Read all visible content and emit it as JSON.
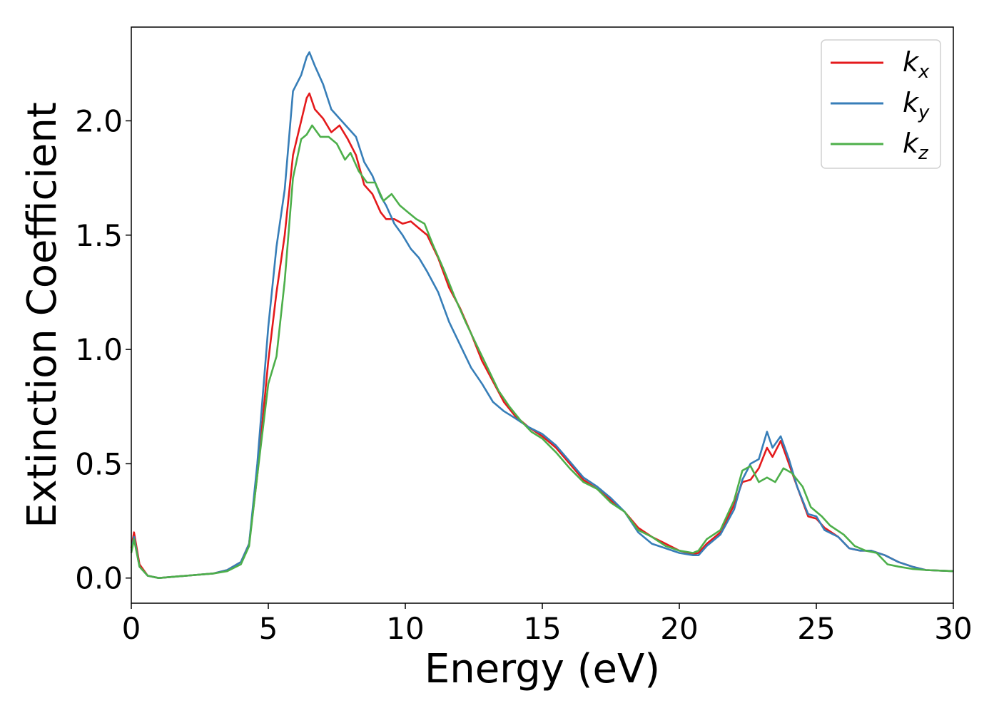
{
  "chart_data": {
    "type": "line",
    "title": "",
    "xlabel": "Energy (eV)",
    "ylabel": "Extinction Coefficient",
    "xlim": [
      0,
      30
    ],
    "ylim": [
      -0.11,
      2.41
    ],
    "xticks": [
      0,
      5,
      10,
      15,
      20,
      25,
      30
    ],
    "xtick_labels": [
      "0",
      "5",
      "10",
      "15",
      "20",
      "25",
      "30"
    ],
    "yticks": [
      0.0,
      0.5,
      1.0,
      1.5,
      2.0
    ],
    "ytick_labels": [
      "0.0",
      "0.5",
      "1.0",
      "1.5",
      "2.0"
    ],
    "grid": false,
    "legend_position": "top-right",
    "series": [
      {
        "name": "k_x",
        "label_base": "k",
        "label_sub": "x",
        "color": "#e41a1c",
        "points": [
          [
            0,
            0.13
          ],
          [
            0.1,
            0.2
          ],
          [
            0.3,
            0.06
          ],
          [
            0.6,
            0.01
          ],
          [
            1.0,
            0.0
          ],
          [
            2.0,
            0.01
          ],
          [
            3.0,
            0.02
          ],
          [
            3.5,
            0.035
          ],
          [
            4.0,
            0.07
          ],
          [
            4.3,
            0.15
          ],
          [
            4.6,
            0.45
          ],
          [
            5.0,
            0.95
          ],
          [
            5.3,
            1.25
          ],
          [
            5.6,
            1.5
          ],
          [
            5.9,
            1.85
          ],
          [
            6.2,
            2.0
          ],
          [
            6.4,
            2.1
          ],
          [
            6.5,
            2.12
          ],
          [
            6.7,
            2.05
          ],
          [
            7.0,
            2.01
          ],
          [
            7.3,
            1.95
          ],
          [
            7.6,
            1.98
          ],
          [
            7.9,
            1.92
          ],
          [
            8.2,
            1.85
          ],
          [
            8.5,
            1.72
          ],
          [
            8.8,
            1.68
          ],
          [
            9.1,
            1.6
          ],
          [
            9.3,
            1.57
          ],
          [
            9.6,
            1.57
          ],
          [
            9.9,
            1.55
          ],
          [
            10.2,
            1.56
          ],
          [
            10.5,
            1.53
          ],
          [
            10.8,
            1.5
          ],
          [
            11.2,
            1.4
          ],
          [
            11.6,
            1.27
          ],
          [
            12.0,
            1.18
          ],
          [
            12.4,
            1.07
          ],
          [
            12.8,
            0.95
          ],
          [
            13.2,
            0.86
          ],
          [
            13.6,
            0.77
          ],
          [
            14.0,
            0.71
          ],
          [
            14.5,
            0.66
          ],
          [
            15.0,
            0.62
          ],
          [
            15.5,
            0.57
          ],
          [
            16.0,
            0.5
          ],
          [
            16.5,
            0.43
          ],
          [
            17.0,
            0.39
          ],
          [
            17.5,
            0.34
          ],
          [
            18.0,
            0.29
          ],
          [
            18.5,
            0.22
          ],
          [
            19.0,
            0.18
          ],
          [
            19.5,
            0.15
          ],
          [
            20.0,
            0.12
          ],
          [
            20.5,
            0.105
          ],
          [
            20.7,
            0.11
          ],
          [
            21.0,
            0.15
          ],
          [
            21.5,
            0.2
          ],
          [
            22.0,
            0.32
          ],
          [
            22.3,
            0.42
          ],
          [
            22.6,
            0.43
          ],
          [
            22.9,
            0.48
          ],
          [
            23.2,
            0.57
          ],
          [
            23.4,
            0.53
          ],
          [
            23.7,
            0.6
          ],
          [
            24.0,
            0.5
          ],
          [
            24.3,
            0.4
          ],
          [
            24.7,
            0.27
          ],
          [
            25.0,
            0.26
          ],
          [
            25.3,
            0.22
          ],
          [
            25.8,
            0.18
          ],
          [
            26.2,
            0.13
          ],
          [
            26.6,
            0.12
          ],
          [
            27.0,
            0.12
          ],
          [
            27.5,
            0.1
          ],
          [
            28.0,
            0.07
          ],
          [
            28.5,
            0.05
          ],
          [
            29.0,
            0.035
          ],
          [
            30,
            0.03
          ]
        ]
      },
      {
        "name": "k_y",
        "label_base": "k",
        "label_sub": "y",
        "color": "#377eb8",
        "points": [
          [
            0,
            0.12
          ],
          [
            0.1,
            0.18
          ],
          [
            0.3,
            0.05
          ],
          [
            0.6,
            0.01
          ],
          [
            1.0,
            0.0
          ],
          [
            2.0,
            0.01
          ],
          [
            3.0,
            0.02
          ],
          [
            3.5,
            0.035
          ],
          [
            4.0,
            0.07
          ],
          [
            4.3,
            0.15
          ],
          [
            4.6,
            0.5
          ],
          [
            5.0,
            1.1
          ],
          [
            5.3,
            1.45
          ],
          [
            5.6,
            1.7
          ],
          [
            5.9,
            2.13
          ],
          [
            6.2,
            2.2
          ],
          [
            6.4,
            2.28
          ],
          [
            6.5,
            2.3
          ],
          [
            6.7,
            2.24
          ],
          [
            7.0,
            2.16
          ],
          [
            7.3,
            2.05
          ],
          [
            7.6,
            2.01
          ],
          [
            7.9,
            1.97
          ],
          [
            8.2,
            1.93
          ],
          [
            8.5,
            1.82
          ],
          [
            8.8,
            1.76
          ],
          [
            9.1,
            1.67
          ],
          [
            9.3,
            1.63
          ],
          [
            9.6,
            1.55
          ],
          [
            9.9,
            1.5
          ],
          [
            10.2,
            1.44
          ],
          [
            10.5,
            1.4
          ],
          [
            10.8,
            1.34
          ],
          [
            11.2,
            1.25
          ],
          [
            11.6,
            1.12
          ],
          [
            12.0,
            1.02
          ],
          [
            12.4,
            0.92
          ],
          [
            12.8,
            0.85
          ],
          [
            13.2,
            0.77
          ],
          [
            13.6,
            0.73
          ],
          [
            14.0,
            0.7
          ],
          [
            14.5,
            0.66
          ],
          [
            15.0,
            0.63
          ],
          [
            15.5,
            0.58
          ],
          [
            16.0,
            0.51
          ],
          [
            16.5,
            0.44
          ],
          [
            17.0,
            0.4
          ],
          [
            17.5,
            0.35
          ],
          [
            18.0,
            0.29
          ],
          [
            18.5,
            0.2
          ],
          [
            19.0,
            0.15
          ],
          [
            19.5,
            0.13
          ],
          [
            20.0,
            0.11
          ],
          [
            20.5,
            0.1
          ],
          [
            20.7,
            0.1
          ],
          [
            21.0,
            0.14
          ],
          [
            21.5,
            0.19
          ],
          [
            22.0,
            0.3
          ],
          [
            22.3,
            0.43
          ],
          [
            22.6,
            0.5
          ],
          [
            22.9,
            0.52
          ],
          [
            23.2,
            0.64
          ],
          [
            23.4,
            0.57
          ],
          [
            23.7,
            0.62
          ],
          [
            24.0,
            0.52
          ],
          [
            24.3,
            0.4
          ],
          [
            24.7,
            0.28
          ],
          [
            25.0,
            0.27
          ],
          [
            25.3,
            0.21
          ],
          [
            25.8,
            0.18
          ],
          [
            26.2,
            0.13
          ],
          [
            26.6,
            0.12
          ],
          [
            27.0,
            0.12
          ],
          [
            27.5,
            0.1
          ],
          [
            28.0,
            0.07
          ],
          [
            28.5,
            0.05
          ],
          [
            29.0,
            0.035
          ],
          [
            30,
            0.03
          ]
        ]
      },
      {
        "name": "k_z",
        "label_base": "k",
        "label_sub": "z",
        "color": "#4daf4a",
        "points": [
          [
            0,
            0.11
          ],
          [
            0.1,
            0.17
          ],
          [
            0.3,
            0.05
          ],
          [
            0.6,
            0.01
          ],
          [
            1.0,
            0.0
          ],
          [
            2.0,
            0.01
          ],
          [
            3.0,
            0.02
          ],
          [
            3.5,
            0.03
          ],
          [
            4.0,
            0.06
          ],
          [
            4.3,
            0.14
          ],
          [
            4.6,
            0.45
          ],
          [
            5.0,
            0.85
          ],
          [
            5.3,
            0.97
          ],
          [
            5.6,
            1.3
          ],
          [
            5.9,
            1.75
          ],
          [
            6.2,
            1.92
          ],
          [
            6.4,
            1.94
          ],
          [
            6.6,
            1.98
          ],
          [
            6.9,
            1.93
          ],
          [
            7.2,
            1.93
          ],
          [
            7.5,
            1.9
          ],
          [
            7.8,
            1.83
          ],
          [
            8.0,
            1.86
          ],
          [
            8.3,
            1.78
          ],
          [
            8.6,
            1.73
          ],
          [
            8.9,
            1.73
          ],
          [
            9.2,
            1.65
          ],
          [
            9.5,
            1.68
          ],
          [
            9.8,
            1.63
          ],
          [
            10.1,
            1.6
          ],
          [
            10.4,
            1.57
          ],
          [
            10.7,
            1.55
          ],
          [
            11.0,
            1.46
          ],
          [
            11.4,
            1.35
          ],
          [
            11.8,
            1.23
          ],
          [
            12.2,
            1.12
          ],
          [
            12.6,
            1.02
          ],
          [
            13.0,
            0.92
          ],
          [
            13.4,
            0.82
          ],
          [
            13.8,
            0.75
          ],
          [
            14.2,
            0.69
          ],
          [
            14.6,
            0.64
          ],
          [
            15.0,
            0.61
          ],
          [
            15.5,
            0.55
          ],
          [
            16.0,
            0.48
          ],
          [
            16.5,
            0.42
          ],
          [
            17.0,
            0.39
          ],
          [
            17.5,
            0.33
          ],
          [
            18.0,
            0.29
          ],
          [
            18.5,
            0.21
          ],
          [
            19.0,
            0.18
          ],
          [
            19.5,
            0.14
          ],
          [
            20.0,
            0.12
          ],
          [
            20.5,
            0.11
          ],
          [
            20.7,
            0.12
          ],
          [
            21.0,
            0.17
          ],
          [
            21.5,
            0.21
          ],
          [
            22.0,
            0.34
          ],
          [
            22.3,
            0.47
          ],
          [
            22.6,
            0.49
          ],
          [
            22.9,
            0.42
          ],
          [
            23.2,
            0.44
          ],
          [
            23.5,
            0.42
          ],
          [
            23.8,
            0.48
          ],
          [
            24.1,
            0.46
          ],
          [
            24.5,
            0.4
          ],
          [
            24.8,
            0.31
          ],
          [
            25.2,
            0.27
          ],
          [
            25.5,
            0.23
          ],
          [
            26.0,
            0.19
          ],
          [
            26.4,
            0.14
          ],
          [
            26.8,
            0.12
          ],
          [
            27.2,
            0.11
          ],
          [
            27.6,
            0.06
          ],
          [
            28.0,
            0.05
          ],
          [
            28.5,
            0.04
          ],
          [
            29.0,
            0.035
          ],
          [
            30,
            0.03
          ]
        ]
      }
    ]
  }
}
